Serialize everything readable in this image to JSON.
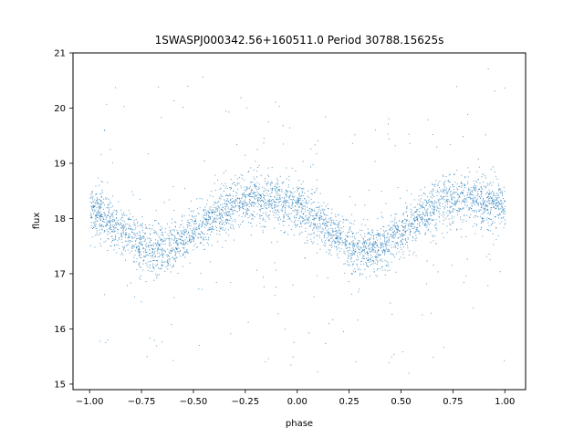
{
  "chart_data": {
    "type": "scatter",
    "title": "1SWASPJ000342.56+160511.0 Period 30788.15625s",
    "xlabel": "phase",
    "ylabel": "flux",
    "xlim": [
      -1.08,
      1.1
    ],
    "ylim": [
      14.9,
      21.0
    ],
    "x_ticks": [
      -1.0,
      -0.75,
      -0.5,
      -0.25,
      0.0,
      0.25,
      0.5,
      0.75,
      1.0
    ],
    "x_tick_labels": [
      "−1.00",
      "−0.75",
      "−0.50",
      "−0.25",
      "0.00",
      "0.25",
      "0.50",
      "0.75",
      "1.00"
    ],
    "y_ticks": [
      15,
      16,
      17,
      18,
      19,
      20,
      21
    ],
    "y_tick_labels": [
      "15",
      "16",
      "17",
      "18",
      "19",
      "20",
      "21"
    ],
    "grid": false,
    "legend": "none",
    "point_color": "#1f77b4",
    "series": [
      {
        "values_description_points": [
          [
            -1.0,
            18.2
          ],
          [
            -0.9,
            17.95
          ],
          [
            -0.8,
            17.65
          ],
          [
            -0.7,
            17.45
          ],
          [
            -0.6,
            17.5
          ],
          [
            -0.5,
            17.75
          ],
          [
            -0.4,
            18.05
          ],
          [
            -0.3,
            18.3
          ],
          [
            -0.2,
            18.38
          ],
          [
            -0.1,
            18.3
          ],
          [
            0.0,
            18.2
          ],
          [
            0.1,
            17.95
          ],
          [
            0.2,
            17.65
          ],
          [
            0.3,
            17.45
          ],
          [
            0.4,
            17.5
          ],
          [
            0.5,
            17.75
          ],
          [
            0.6,
            18.05
          ],
          [
            0.7,
            18.3
          ],
          [
            0.8,
            18.38
          ],
          [
            0.9,
            18.3
          ],
          [
            1.0,
            18.2
          ]
        ]
      }
    ]
  }
}
